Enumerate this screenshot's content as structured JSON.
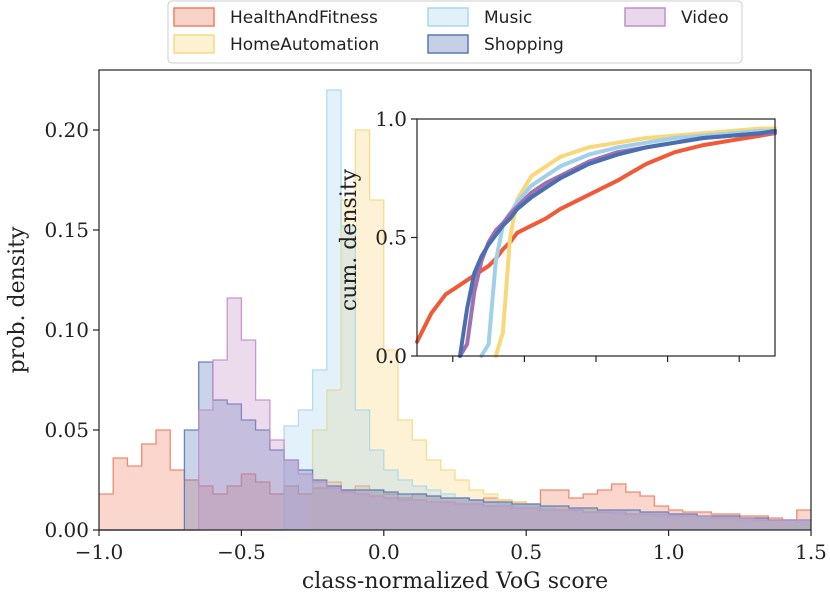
{
  "chart_data": [
    {
      "type": "histogram",
      "title": "",
      "xlabel": "class-normalized VoG score",
      "ylabel": "prob. density",
      "xlim": [
        -1.0,
        1.5
      ],
      "ylim": [
        0.0,
        0.23
      ],
      "xticks": [
        -1.0,
        -0.5,
        0.0,
        0.5,
        1.0,
        1.5
      ],
      "xtick_labels": [
        "−1.0",
        "−0.5",
        "0.0",
        "0.5",
        "1.0",
        "1.5"
      ],
      "yticks": [
        0.0,
        0.05,
        0.1,
        0.15,
        0.2
      ],
      "ytick_labels": [
        "0.00",
        "0.05",
        "0.10",
        "0.15",
        "0.20"
      ],
      "bin_start": -1.0,
      "bin_width": 0.05,
      "legend": {
        "placement": "top-center",
        "entries": [
          "HealthAndFitness",
          "HomeAutomation",
          "Music",
          "Shopping",
          "Video"
        ]
      },
      "series": [
        {
          "name": "HealthAndFitness",
          "color": "#f08060",
          "values": [
            0.018,
            0.036,
            0.032,
            0.043,
            0.05,
            0.03,
            0.025,
            0.022,
            0.018,
            0.022,
            0.028,
            0.024,
            0.018,
            0.022,
            0.018,
            0.021,
            0.024,
            0.02,
            0.022,
            0.02,
            0.018,
            0.016,
            0.018,
            0.017,
            0.016,
            0.016,
            0.015,
            0.016,
            0.015,
            0.014,
            0.013,
            0.02,
            0.02,
            0.016,
            0.018,
            0.02,
            0.023,
            0.019,
            0.017,
            0.012,
            0.01,
            0.009,
            0.009,
            0.008,
            0.008,
            0.007,
            0.007,
            0.006,
            0.005,
            0.01
          ]
        },
        {
          "name": "HomeAutomation",
          "color": "#f8d880",
          "values": [
            0,
            0,
            0,
            0,
            0,
            0,
            0,
            0,
            0,
            0,
            0,
            0,
            0,
            0,
            0,
            0.05,
            0.07,
            0.165,
            0.2,
            0.165,
            0.09,
            0.055,
            0.045,
            0.035,
            0.03,
            0.025,
            0.02,
            0.018,
            0.015,
            0.014,
            0.013,
            0.012,
            0.011,
            0.01,
            0.01,
            0.009,
            0.008,
            0.008,
            0.007,
            0.007,
            0.006,
            0.006,
            0.005,
            0.005,
            0.005,
            0.004,
            0.004,
            0.004,
            0.003,
            0.003
          ]
        },
        {
          "name": "Music",
          "color": "#a8d8ee",
          "values": [
            0,
            0,
            0,
            0,
            0,
            0,
            0,
            0,
            0,
            0,
            0,
            0,
            0,
            0.052,
            0.06,
            0.08,
            0.22,
            0.152,
            0.06,
            0.04,
            0.03,
            0.025,
            0.022,
            0.02,
            0.018,
            0.016,
            0.015,
            0.014,
            0.013,
            0.012,
            0.012,
            0.011,
            0.01,
            0.01,
            0.009,
            0.009,
            0.008,
            0.008,
            0.008,
            0.007,
            0.007,
            0.007,
            0.006,
            0.006,
            0.006,
            0.005,
            0.005,
            0.005,
            0.005,
            0.004
          ]
        },
        {
          "name": "Shopping",
          "color": "#5878b8",
          "values": [
            0,
            0,
            0,
            0,
            0,
            0,
            0.05,
            0.084,
            0.065,
            0.063,
            0.055,
            0.05,
            0.04,
            0.035,
            0.03,
            0.025,
            0.022,
            0.02,
            0.02,
            0.02,
            0.019,
            0.018,
            0.018,
            0.017,
            0.016,
            0.016,
            0.015,
            0.014,
            0.014,
            0.013,
            0.013,
            0.012,
            0.012,
            0.011,
            0.011,
            0.01,
            0.01,
            0.01,
            0.009,
            0.009,
            0.008,
            0.008,
            0.007,
            0.007,
            0.007,
            0.006,
            0.006,
            0.005,
            0.005,
            0.005
          ]
        },
        {
          "name": "Video",
          "color": "#c090c8",
          "values": [
            0,
            0,
            0,
            0,
            0,
            0,
            0,
            0.06,
            0.085,
            0.116,
            0.095,
            0.065,
            0.045,
            0.035,
            0.028,
            0.024,
            0.021,
            0.019,
            0.018,
            0.017,
            0.016,
            0.015,
            0.015,
            0.014,
            0.014,
            0.013,
            0.013,
            0.012,
            0.012,
            0.011,
            0.011,
            0.01,
            0.01,
            0.01,
            0.009,
            0.009,
            0.009,
            0.008,
            0.008,
            0.008,
            0.007,
            0.007,
            0.007,
            0.006,
            0.006,
            0.006,
            0.005,
            0.005,
            0.005,
            0.005
          ]
        }
      ]
    },
    {
      "type": "line",
      "title": "",
      "xlabel": "",
      "ylabel": "cum. density",
      "xlim": [
        -1.0,
        1.5
      ],
      "ylim": [
        0.0,
        1.0
      ],
      "xticks": [
        -0.75,
        -0.25,
        0.25,
        0.75,
        1.25
      ],
      "yticks": [
        0.0,
        0.5,
        1.0
      ],
      "ytick_labels": [
        "0.0",
        "0.5",
        "1.0"
      ],
      "x": [
        -1.0,
        -0.9,
        -0.8,
        -0.7,
        -0.65,
        -0.6,
        -0.55,
        -0.5,
        -0.45,
        -0.4,
        -0.35,
        -0.3,
        -0.2,
        -0.1,
        0.0,
        0.2,
        0.4,
        0.6,
        0.8,
        1.0,
        1.2,
        1.4,
        1.5
      ],
      "series": [
        {
          "name": "HealthAndFitness",
          "color": "#f05a38",
          "values": [
            0.06,
            0.18,
            0.26,
            0.3,
            0.32,
            0.34,
            0.36,
            0.38,
            0.41,
            0.45,
            0.48,
            0.52,
            0.55,
            0.58,
            0.62,
            0.68,
            0.74,
            0.81,
            0.86,
            0.89,
            0.91,
            0.93,
            0.94
          ]
        },
        {
          "name": "HomeAutomation",
          "color": "#f8d878",
          "values": [
            0.0,
            0.0,
            0.0,
            0.0,
            0.0,
            0.0,
            0.0,
            0.0,
            0.0,
            0.1,
            0.5,
            0.66,
            0.76,
            0.8,
            0.84,
            0.88,
            0.9,
            0.92,
            0.93,
            0.94,
            0.95,
            0.96,
            0.96
          ]
        },
        {
          "name": "Music",
          "color": "#a0d0ea",
          "values": [
            0.0,
            0.0,
            0.0,
            0.0,
            0.0,
            0.0,
            0.0,
            0.05,
            0.4,
            0.55,
            0.6,
            0.65,
            0.72,
            0.76,
            0.8,
            0.85,
            0.88,
            0.9,
            0.92,
            0.93,
            0.94,
            0.95,
            0.95
          ]
        },
        {
          "name": "Video",
          "color": "#a070b0",
          "values": [
            0.0,
            0.0,
            0.0,
            0.0,
            0.05,
            0.27,
            0.4,
            0.48,
            0.53,
            0.56,
            0.6,
            0.63,
            0.69,
            0.73,
            0.76,
            0.82,
            0.86,
            0.88,
            0.9,
            0.92,
            0.93,
            0.94,
            0.94
          ]
        },
        {
          "name": "Shopping",
          "color": "#4a6eb0",
          "values": [
            0.0,
            0.0,
            0.0,
            0.0,
            0.2,
            0.35,
            0.42,
            0.47,
            0.51,
            0.55,
            0.58,
            0.62,
            0.67,
            0.71,
            0.75,
            0.81,
            0.85,
            0.88,
            0.9,
            0.92,
            0.93,
            0.94,
            0.95
          ]
        }
      ]
    }
  ]
}
